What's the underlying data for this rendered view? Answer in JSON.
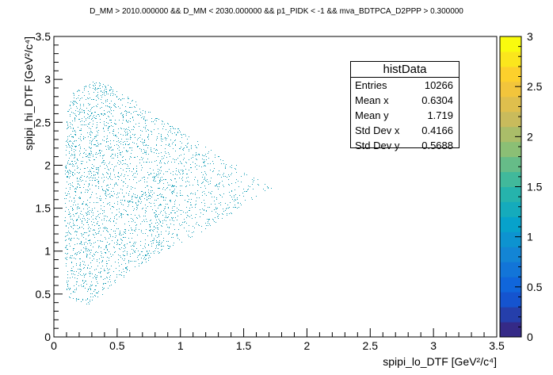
{
  "title": "D_MM > 2010.000000 && D_MM < 2030.000000 && p1_PIDK < -1 && mva_BDTPCA_D2PPP > 0.300000",
  "stats": {
    "header": "histData",
    "rows": [
      {
        "label": "Entries",
        "value": "10266"
      },
      {
        "label": "Mean x",
        "value": "0.6304"
      },
      {
        "label": "Mean y",
        "value": "1.719"
      },
      {
        "label": "Std Dev x",
        "value": "0.4166"
      },
      {
        "label": "Std Dev y",
        "value": "0.5688"
      }
    ]
  },
  "chart_data": {
    "type": "heatmap",
    "xlabel": "spipi_lo_DTF [GeV²/c⁴]",
    "ylabel": "spipi_hi_DTF [GeV²/c⁴]",
    "xlim": [
      0,
      3.5
    ],
    "ylim": [
      0,
      3.5
    ],
    "x_ticks": [
      "0",
      "0.5",
      "1",
      "1.5",
      "2",
      "2.5",
      "3",
      "3.5"
    ],
    "y_ticks": [
      "0",
      "0.5",
      "1",
      "1.5",
      "2",
      "2.5",
      "3",
      "3.5"
    ],
    "z_range": [
      0,
      3
    ],
    "z_ticks": [
      "0",
      "0.5",
      "1",
      "1.5",
      "2",
      "2.5",
      "3"
    ],
    "entries": 10266,
    "marker_color": "#1aa0b8",
    "colormap": [
      "#352a87",
      "#0f5cdd",
      "#1481d6",
      "#06a4ca",
      "#2eb7a4",
      "#87bf77",
      "#d1bb59",
      "#fec832",
      "#f9fb0e"
    ],
    "region_boundary": [
      {
        "x": 0.09,
        "y": 0.47
      },
      {
        "x": 0.08,
        "y": 1.7
      },
      {
        "x": 0.1,
        "y": 2.62
      },
      {
        "x": 0.15,
        "y": 2.85
      },
      {
        "x": 0.3,
        "y": 2.98
      },
      {
        "x": 0.4,
        "y": 2.97
      },
      {
        "x": 1.72,
        "y": 1.74
      },
      {
        "x": 1.2,
        "y": 1.25
      },
      {
        "x": 0.8,
        "y": 0.95
      },
      {
        "x": 0.5,
        "y": 0.65
      },
      {
        "x": 0.3,
        "y": 0.38
      },
      {
        "x": 0.2,
        "y": 0.4
      }
    ]
  }
}
